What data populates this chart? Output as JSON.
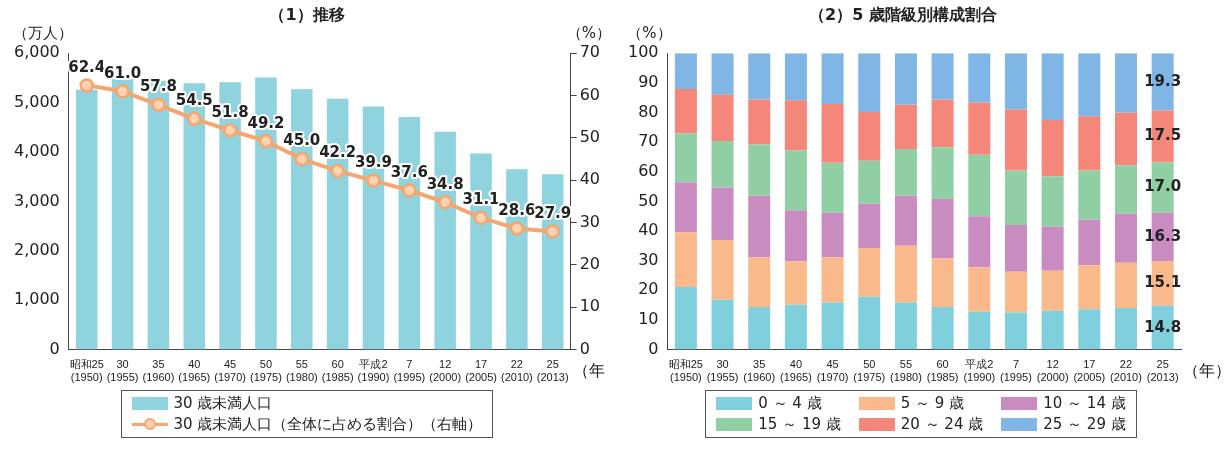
{
  "chart_data": [
    {
      "type": "bar",
      "title": "（1）推移",
      "ylabel": "（万人）",
      "y2label": "（%）",
      "xlabel": "（年）",
      "categories": [
        "昭和25\n(1950)",
        "30\n(1955)",
        "35\n(1960)",
        "40\n(1965)",
        "45\n(1970)",
        "50\n(1975)",
        "55\n(1980)",
        "60\n(1985)",
        "平成2\n(1990)",
        "7\n(1995)",
        "12\n(2000)",
        "17\n(2005)",
        "22\n(2010)",
        "25\n(2013)"
      ],
      "series": [
        {
          "name": "30 歳未満人口",
          "type": "bar",
          "color": "#8ed3dd",
          "values": [
            5260,
            5480,
            5440,
            5390,
            5410,
            5510,
            5270,
            5080,
            4920,
            4710,
            4410,
            3970,
            3650,
            3550
          ]
        },
        {
          "name": "30 歳未満人口（全体に占める割合）（右軸）",
          "type": "line",
          "axis": "y2",
          "color": "#f7a56e",
          "values": [
            62.4,
            61.0,
            57.8,
            54.5,
            51.8,
            49.2,
            45.0,
            42.2,
            39.9,
            37.6,
            34.8,
            31.1,
            28.6,
            27.9
          ],
          "value_labels": [
            "62.4",
            "61.0",
            "57.8",
            "54.5",
            "51.8",
            "49.2",
            "45.0",
            "42.2",
            "39.9",
            "37.6",
            "34.8",
            "31.1",
            "28.6",
            "27.9"
          ]
        }
      ],
      "ylim": [
        0,
        6000
      ],
      "yticks": [
        0,
        {
          "value": 1000,
          "label": "1,000"
        },
        {
          "value": 2000,
          "label": "2,000"
        },
        {
          "value": 3000,
          "label": "3,000"
        },
        {
          "value": 4000,
          "label": "4,000"
        },
        {
          "value": 5000,
          "label": "5,000"
        },
        {
          "value": 6000,
          "label": "6,000"
        }
      ],
      "y2lim": [
        0,
        70
      ],
      "y2ticks": [
        0,
        10,
        20,
        30,
        40,
        50,
        60,
        70
      ],
      "marker": "circle",
      "legend": "bottom"
    },
    {
      "type": "bar",
      "title": "（2）5 歳階級別構成割合",
      "ylabel": "（%）",
      "xlabel": "（年）",
      "stacked": true,
      "categories": [
        "昭和25\n(1950)",
        "30\n(1955)",
        "35\n(1960)",
        "40\n(1965)",
        "45\n(1970)",
        "50\n(1975)",
        "55\n(1980)",
        "60\n(1985)",
        "平成2\n(1990)",
        "7\n(1995)",
        "12\n(2000)",
        "17\n(2005)",
        "22\n(2010)",
        "25\n(2013)"
      ],
      "series": [
        {
          "name": "0 ～ 4 歳",
          "color": "#7fd0dc",
          "values": [
            21.1,
            16.8,
            14.4,
            15.1,
            15.9,
            17.8,
            15.9,
            14.4,
            12.8,
            12.5,
            13.1,
            13.6,
            14.0,
            14.8
          ],
          "value_labels": [
            null,
            null,
            null,
            null,
            null,
            null,
            null,
            null,
            null,
            null,
            null,
            null,
            null,
            "14.8"
          ]
        },
        {
          "name": "5 ～ 9 歳",
          "color": "#f9b98a",
          "values": [
            18.5,
            20.2,
            16.7,
            14.7,
            15.2,
            16.5,
            19.1,
            16.4,
            15.0,
            13.8,
            13.5,
            14.9,
            15.3,
            15.1
          ],
          "value_labels": [
            null,
            null,
            null,
            null,
            null,
            null,
            null,
            null,
            null,
            null,
            null,
            null,
            null,
            "15.1"
          ]
        },
        {
          "name": "10 ～ 14 歳",
          "color": "#c98cc0",
          "values": [
            16.9,
            17.7,
            20.9,
            17.2,
            15.1,
            14.9,
            17.0,
            20.0,
            17.2,
            15.7,
            14.9,
            15.3,
            16.5,
            16.3
          ],
          "value_labels": [
            null,
            null,
            null,
            null,
            null,
            null,
            null,
            null,
            null,
            null,
            null,
            null,
            null,
            "16.3"
          ]
        },
        {
          "name": "15 ～ 19 歳",
          "color": "#8fcfa3",
          "values": [
            16.5,
            15.7,
            17.2,
            20.2,
            16.8,
            14.5,
            15.7,
            17.5,
            20.7,
            18.4,
            17.0,
            16.6,
            16.4,
            17.0
          ],
          "value_labels": [
            null,
            null,
            null,
            null,
            null,
            null,
            null,
            null,
            null,
            null,
            null,
            null,
            null,
            "17.0"
          ]
        },
        {
          "name": "20 ～ 24 歳",
          "color": "#f4877a",
          "values": [
            14.9,
            15.6,
            15.2,
            16.9,
            19.9,
            16.5,
            14.9,
            16.1,
            17.7,
            20.6,
            19.0,
            18.3,
            17.7,
            17.5
          ],
          "value_labels": [
            null,
            null,
            null,
            null,
            null,
            null,
            null,
            null,
            null,
            null,
            null,
            null,
            null,
            "17.5"
          ]
        },
        {
          "name": "25 ～ 29 歳",
          "color": "#7fb6e6",
          "values": [
            12.1,
            14.0,
            15.6,
            15.9,
            17.1,
            19.8,
            17.4,
            15.6,
            16.6,
            19.0,
            22.5,
            21.3,
            20.1,
            19.3
          ],
          "value_labels": [
            null,
            null,
            null,
            null,
            null,
            null,
            null,
            null,
            null,
            null,
            null,
            null,
            null,
            "19.3"
          ]
        }
      ],
      "ylim": [
        0,
        100
      ],
      "yticks": [
        0,
        10,
        20,
        30,
        40,
        50,
        60,
        70,
        80,
        90,
        100
      ],
      "legend": "bottom"
    }
  ]
}
